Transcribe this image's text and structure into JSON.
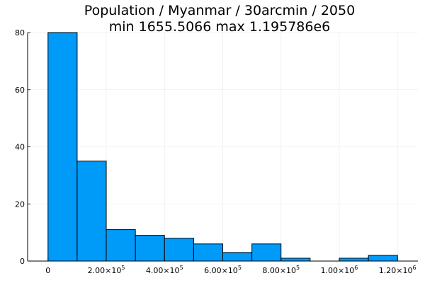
{
  "chart_data": {
    "type": "bar",
    "title": "Population / Myanmar / 30arcmin / 2050",
    "subtitle": "min 1655.5066  max 1.195786e6",
    "xlabel": "",
    "ylabel": "",
    "bin_edges": [
      0,
      100000,
      200000,
      300000,
      400000,
      500000,
      600000,
      700000,
      800000,
      900000,
      1000000,
      1100000,
      1200000
    ],
    "values": [
      80,
      35,
      11,
      9,
      8,
      6,
      3,
      6,
      1,
      0,
      1,
      2
    ],
    "xlim": [
      -70000,
      1270000
    ],
    "ylim": [
      0,
      80
    ],
    "x_ticks": [
      {
        "value": 0,
        "mantissa": "0",
        "exponent": ""
      },
      {
        "value": 200000,
        "mantissa": "2.00×10",
        "exponent": "5"
      },
      {
        "value": 400000,
        "mantissa": "4.00×10",
        "exponent": "5"
      },
      {
        "value": 600000,
        "mantissa": "6.00×10",
        "exponent": "5"
      },
      {
        "value": 800000,
        "mantissa": "8.00×10",
        "exponent": "5"
      },
      {
        "value": 1000000,
        "mantissa": "1.00×10",
        "exponent": "6"
      },
      {
        "value": 1200000,
        "mantissa": "1.20×10",
        "exponent": "6"
      }
    ],
    "y_ticks": [
      0,
      20,
      40,
      60,
      80
    ],
    "grid": true,
    "legend": "none",
    "bar_color": "#009af9",
    "edge_color": "#000000"
  }
}
